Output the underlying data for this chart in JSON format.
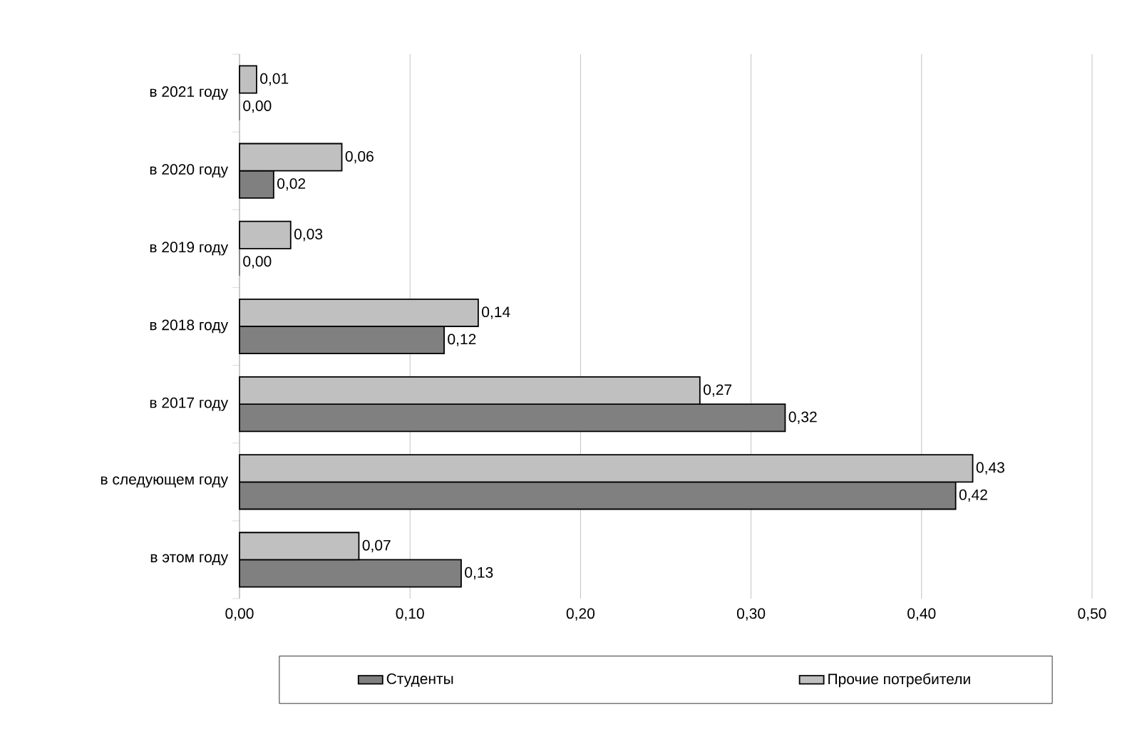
{
  "chart_data": {
    "type": "bar",
    "orientation": "horizontal",
    "categories": [
      "в 2021 году",
      "в 2020 году",
      "в 2019 году",
      "в 2018 году",
      "в 2017 году",
      "в следующем году",
      "в этом году"
    ],
    "series": [
      {
        "name": "Студенты",
        "color": "#808080",
        "values": [
          0.0,
          0.02,
          0.0,
          0.12,
          0.32,
          0.42,
          0.13
        ],
        "value_labels": [
          "0,00",
          "0,02",
          "0,00",
          "0,12",
          "0,32",
          "0,42",
          "0,13"
        ]
      },
      {
        "name": "Прочие потребители",
        "color": "#c0c0c0",
        "values": [
          0.01,
          0.06,
          0.03,
          0.14,
          0.27,
          0.43,
          0.07
        ],
        "value_labels": [
          "0,01",
          "0,06",
          "0,03",
          "0,14",
          "0,27",
          "0,43",
          "0,07"
        ]
      }
    ],
    "xlim": [
      0,
      0.5
    ],
    "xticks": [
      {
        "value": 0,
        "label": "0,00"
      },
      {
        "value": 0.1,
        "label": "0,10"
      },
      {
        "value": 0.2,
        "label": "0,20"
      },
      {
        "value": 0.3,
        "label": "0,30"
      },
      {
        "value": 0.4,
        "label": "0,40"
      },
      {
        "value": 0.5,
        "label": "0,50"
      }
    ],
    "grid": "x",
    "legend": "bottom"
  }
}
